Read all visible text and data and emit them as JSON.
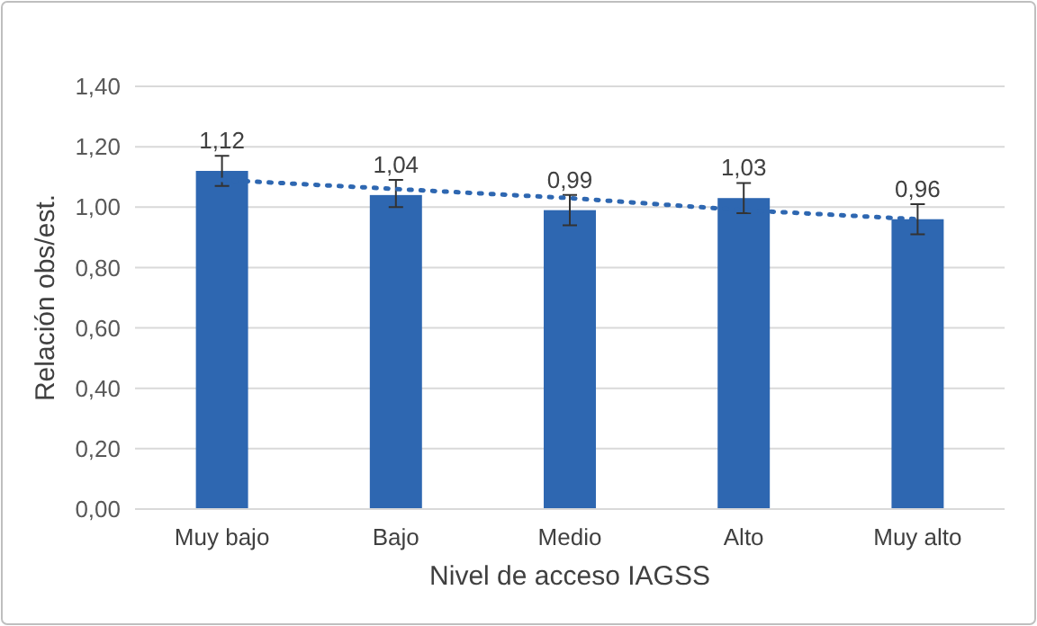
{
  "chart_data": {
    "type": "bar",
    "xlabel": "Nivel de acceso IAGSS",
    "ylabel": "Relación obs/est.",
    "categories": [
      "Muy bajo",
      "Bajo",
      "Medio",
      "Alto",
      "Muy alto"
    ],
    "series": [
      {
        "color": "#2e67b1",
        "values": [
          1.12,
          1.04,
          0.99,
          1.03,
          0.96
        ],
        "errors": [
          [
            1.07,
            1.17
          ],
          [
            1.0,
            1.09
          ],
          [
            0.94,
            1.04
          ],
          [
            0.98,
            1.08
          ],
          [
            0.91,
            1.01
          ]
        ],
        "value_labels": [
          "1,12",
          "1,04",
          "0,99",
          "1,03",
          "0,96"
        ]
      },
      {
        "type": "line",
        "color": "#2e67b1",
        "line_style": "dotted",
        "values": [
          1.09,
          1.06,
          1.03,
          0.99,
          0.96
        ]
      }
    ],
    "ylim": [
      0,
      1.4
    ],
    "yticks": [
      {
        "value": 0,
        "label": "0,00"
      },
      {
        "value": 0.2,
        "label": "0,20"
      },
      {
        "value": 0.4,
        "label": "0,40"
      },
      {
        "value": 0.6,
        "label": "0,60"
      },
      {
        "value": 0.8,
        "label": "0,80"
      },
      {
        "value": 1.0,
        "label": "1,00"
      },
      {
        "value": 1.2,
        "label": "1,20"
      },
      {
        "value": 1.4,
        "label": "1,40"
      }
    ],
    "grid": "y"
  }
}
